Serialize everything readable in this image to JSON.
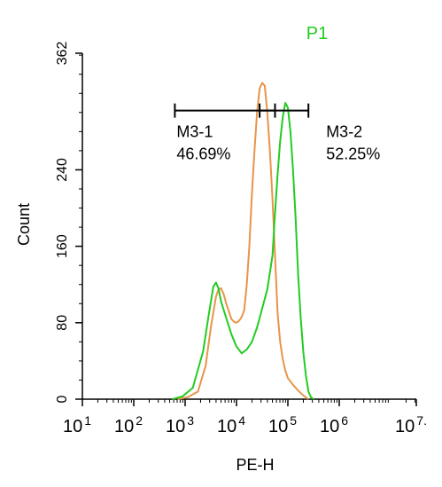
{
  "chart_data": {
    "type": "line",
    "title": "P1",
    "title_color": "#22cc22",
    "xlabel": "PE-H",
    "ylabel": "Count",
    "x_scale": "log",
    "xlim": [
      10,
      31622776
    ],
    "ylim": [
      0,
      362
    ],
    "x_ticks": [
      {
        "value": 10,
        "base": "10",
        "exp": "1"
      },
      {
        "value": 100,
        "base": "10",
        "exp": "2"
      },
      {
        "value": 1000,
        "base": "10",
        "exp": "3"
      },
      {
        "value": 10000,
        "base": "10",
        "exp": "4"
      },
      {
        "value": 100000,
        "base": "10",
        "exp": "5"
      },
      {
        "value": 1000000,
        "base": "10",
        "exp": "6"
      },
      {
        "value": 31622776,
        "base": "10",
        "exp": "7."
      }
    ],
    "y_ticks": [
      {
        "value": 0,
        "label": "0"
      },
      {
        "value": 80,
        "label": "80"
      },
      {
        "value": 160,
        "label": "160"
      },
      {
        "value": 240,
        "label": "240"
      },
      {
        "value": 362,
        "label": "362"
      }
    ],
    "grid": false,
    "series": [
      {
        "color": "#e8944a",
        "points": [
          [
            708,
            0
          ],
          [
            1122,
            2
          ],
          [
            1778,
            8
          ],
          [
            2512,
            35
          ],
          [
            3162,
            75
          ],
          [
            3981,
            107
          ],
          [
            4467,
            115
          ],
          [
            5012,
            116
          ],
          [
            5623,
            110
          ],
          [
            6310,
            100
          ],
          [
            7079,
            92
          ],
          [
            7943,
            84
          ],
          [
            8913,
            81
          ],
          [
            10000,
            80
          ],
          [
            11220,
            82
          ],
          [
            12589,
            86
          ],
          [
            14125,
            93
          ],
          [
            15849,
            120
          ],
          [
            17783,
            160
          ],
          [
            19953,
            215
          ],
          [
            22387,
            260
          ],
          [
            25119,
            300
          ],
          [
            28184,
            325
          ],
          [
            31623,
            331
          ],
          [
            35481,
            328
          ],
          [
            39811,
            300
          ],
          [
            44668,
            260
          ],
          [
            50119,
            210
          ],
          [
            56234,
            150
          ],
          [
            63096,
            90
          ],
          [
            70795,
            60
          ],
          [
            79433,
            42
          ],
          [
            89125,
            30
          ],
          [
            100000,
            22
          ],
          [
            125893,
            15
          ],
          [
            158489,
            9
          ],
          [
            199526,
            4
          ],
          [
            251189,
            0
          ]
        ]
      },
      {
        "color": "#22cc22",
        "points": [
          [
            562,
            0
          ],
          [
            891,
            3
          ],
          [
            1413,
            12
          ],
          [
            2239,
            50
          ],
          [
            2818,
            85
          ],
          [
            3548,
            118
          ],
          [
            3981,
            122
          ],
          [
            4467,
            116
          ],
          [
            5012,
            102
          ],
          [
            6310,
            85
          ],
          [
            7943,
            68
          ],
          [
            10000,
            55
          ],
          [
            12589,
            48
          ],
          [
            15849,
            52
          ],
          [
            19953,
            60
          ],
          [
            25119,
            75
          ],
          [
            31623,
            95
          ],
          [
            39811,
            115
          ],
          [
            50119,
            150
          ],
          [
            56234,
            195
          ],
          [
            63096,
            235
          ],
          [
            70795,
            270
          ],
          [
            79433,
            295
          ],
          [
            89125,
            310
          ],
          [
            100000,
            305
          ],
          [
            112202,
            280
          ],
          [
            125893,
            240
          ],
          [
            141254,
            190
          ],
          [
            158489,
            130
          ],
          [
            177828,
            85
          ],
          [
            199526,
            50
          ],
          [
            223872,
            25
          ],
          [
            251189,
            8
          ],
          [
            281838,
            2
          ],
          [
            316228,
            0
          ]
        ]
      }
    ],
    "markers": [
      {
        "label": "M3-1",
        "percent": "46.69%",
        "x_start": 631,
        "x_end": 56234,
        "y": 302
      },
      {
        "label": "M3-2",
        "percent": "52.25%",
        "x_start": 28184,
        "x_end": 251189,
        "y": 302
      }
    ]
  }
}
